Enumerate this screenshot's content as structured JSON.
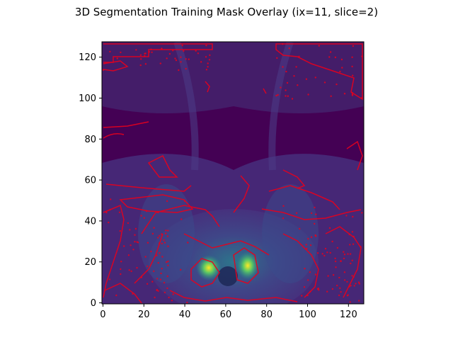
{
  "chart_data": {
    "type": "heatmap",
    "title": "3D Segmentation Training Mask Overlay (ix=11, slice=2)",
    "xlabel": "",
    "ylabel": "",
    "xlim": [
      -0.5,
      127.5
    ],
    "ylim": [
      127.5,
      -0.5
    ],
    "x_ticks": [
      0,
      20,
      40,
      60,
      80,
      100,
      120
    ],
    "y_ticks": [
      0,
      20,
      40,
      60,
      80,
      100,
      120
    ],
    "grid": false,
    "legend": "none",
    "colormap": "viridis",
    "overlay": {
      "description": "",
      "color": "#e8001c"
    },
    "image_size": [
      128,
      128
    ]
  },
  "colors": {
    "bg": "#440154",
    "mid": "#3b2f7a",
    "contour": "#e8001c"
  }
}
